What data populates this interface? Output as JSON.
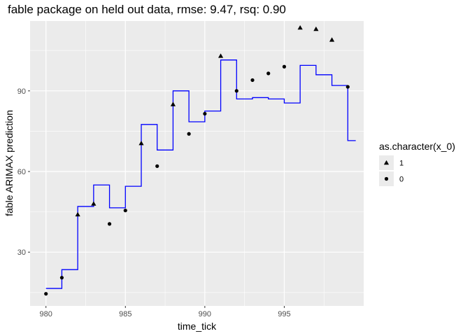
{
  "chart_data": {
    "type": "scatter",
    "title": "fable package on held out data, rmse: 9.47, rsq: 0.90",
    "xlabel": "time_tick",
    "ylabel": "fable ARIMAX prediction",
    "xlim": [
      979.0,
      1000.0
    ],
    "ylim": [
      10.0,
      116.0
    ],
    "xticks": [
      980,
      985,
      990,
      995
    ],
    "yticks": [
      30,
      60,
      90
    ],
    "grid": true,
    "background": "#ebebeb",
    "grid_color": "#ffffff",
    "line_color": "#0000ff",
    "point_color": "#000000",
    "legend": {
      "title": "as.character(x_0)",
      "position": "right",
      "entries": [
        {
          "label": "1",
          "shape": "triangle"
        },
        {
          "label": "0",
          "shape": "circle"
        }
      ]
    },
    "prediction_step": {
      "name": "prediction",
      "x": [
        980,
        981,
        982,
        983,
        984,
        985,
        986,
        987,
        988,
        989,
        990,
        991,
        992,
        993,
        994,
        995,
        996,
        997,
        998,
        999
      ],
      "y": [
        16.5,
        23.5,
        47.0,
        55.0,
        46.5,
        54.5,
        77.5,
        68.0,
        90.0,
        78.5,
        82.5,
        101.5,
        87.0,
        87.5,
        87.0,
        85.5,
        99.5,
        96.0,
        92.0,
        71.5
      ]
    },
    "series": [
      {
        "name": "1",
        "shape": "triangle",
        "x": [
          982,
          983,
          986,
          988,
          991,
          996,
          997,
          998
        ],
        "y": [
          44.0,
          48.0,
          70.5,
          85.0,
          103.0,
          113.5,
          113.0,
          109.0
        ]
      },
      {
        "name": "0",
        "shape": "circle",
        "x": [
          980,
          981,
          984,
          985,
          987,
          989,
          990,
          992,
          993,
          994,
          995,
          999
        ],
        "y": [
          14.5,
          20.5,
          40.5,
          45.5,
          62.0,
          74.0,
          81.5,
          90.0,
          94.0,
          96.5,
          99.0,
          91.5
        ]
      }
    ]
  }
}
